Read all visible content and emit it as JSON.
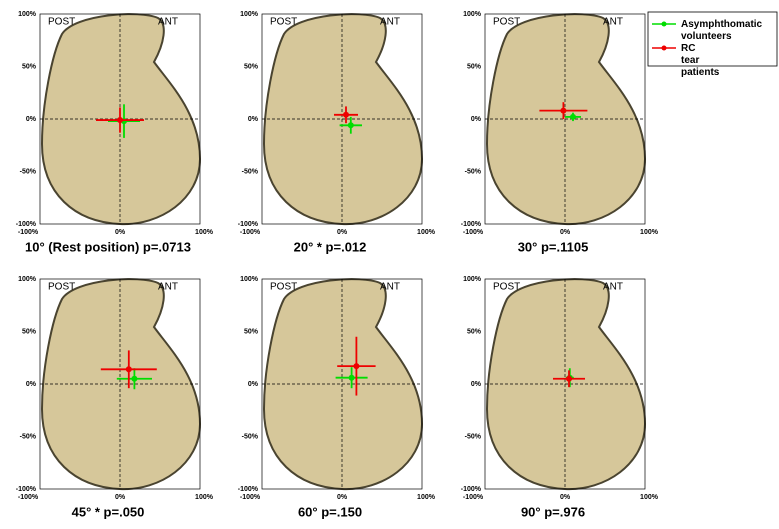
{
  "legend": [
    {
      "name": "Asymphthomatic volunteers",
      "color": "#00dd00"
    },
    {
      "name": "RC tear patients",
      "color": "#ee0000"
    }
  ],
  "chart_data": [
    {
      "type": "scatter",
      "title": "10° (Rest position) p=.0713",
      "annotations": [
        "POST",
        "ANT"
      ],
      "xlim": [
        -100,
        100
      ],
      "ylim": [
        -100,
        100
      ],
      "xticks": [
        {
          "value": -100,
          "label": "-100%"
        },
        {
          "value": 0,
          "label": "0%"
        },
        {
          "value": 100,
          "label": "100%"
        }
      ],
      "yticks": [
        {
          "value": 100,
          "label": "100%"
        },
        {
          "value": 50,
          "label": "50%"
        },
        {
          "value": 0,
          "label": "0%"
        },
        {
          "value": -50,
          "label": "-50%"
        },
        {
          "value": -100,
          "label": "-100%"
        }
      ],
      "series": [
        {
          "color": "#00dd00",
          "x": [
            5
          ],
          "y": [
            -2
          ],
          "xerr": [
            20
          ],
          "yerr": [
            16
          ]
        },
        {
          "color": "#ee0000",
          "x": [
            0
          ],
          "y": [
            -1
          ],
          "xerr": [
            30
          ],
          "yerr": [
            12
          ]
        }
      ]
    },
    {
      "type": "scatter",
      "title": "20° * p=.012",
      "annotations": [
        "POST",
        "ANT"
      ],
      "xlim": [
        -100,
        100
      ],
      "ylim": [
        -100,
        100
      ],
      "xticks": [
        {
          "value": -100,
          "label": "-100%"
        },
        {
          "value": 0,
          "label": "0%"
        },
        {
          "value": 100,
          "label": "100%"
        }
      ],
      "yticks": [
        {
          "value": 100,
          "label": "100%"
        },
        {
          "value": 50,
          "label": "50%"
        },
        {
          "value": 0,
          "label": "0%"
        },
        {
          "value": -50,
          "label": "-50%"
        },
        {
          "value": -100,
          "label": "-100%"
        }
      ],
      "series": [
        {
          "color": "#00dd00",
          "x": [
            11
          ],
          "y": [
            -6
          ],
          "xerr": [
            14
          ],
          "yerr": [
            8
          ]
        },
        {
          "color": "#ee0000",
          "x": [
            5
          ],
          "y": [
            4
          ],
          "xerr": [
            15
          ],
          "yerr": [
            8
          ]
        }
      ]
    },
    {
      "type": "scatter",
      "title": "30° p=.1105",
      "annotations": [
        "POST",
        "ANT"
      ],
      "xlim": [
        -100,
        100
      ],
      "ylim": [
        -100,
        100
      ],
      "xticks": [
        {
          "value": -100,
          "label": "-100%"
        },
        {
          "value": 0,
          "label": "0%"
        },
        {
          "value": 100,
          "label": "100%"
        }
      ],
      "yticks": [
        {
          "value": 100,
          "label": "100%"
        },
        {
          "value": 50,
          "label": "50%"
        },
        {
          "value": 0,
          "label": "0%"
        },
        {
          "value": -50,
          "label": "-50%"
        },
        {
          "value": -100,
          "label": "-100%"
        }
      ],
      "series": [
        {
          "color": "#00dd00",
          "x": [
            10
          ],
          "y": [
            2
          ],
          "xerr": [
            10
          ],
          "yerr": [
            4
          ]
        },
        {
          "color": "#ee0000",
          "x": [
            -2
          ],
          "y": [
            8
          ],
          "xerr": [
            30
          ],
          "yerr": [
            8
          ]
        }
      ]
    },
    {
      "type": "scatter",
      "title": "45° * p=.050",
      "annotations": [
        "POST",
        "ANT"
      ],
      "xlim": [
        -100,
        100
      ],
      "ylim": [
        -100,
        100
      ],
      "xticks": [
        {
          "value": -100,
          "label": "-100%"
        },
        {
          "value": 0,
          "label": "0%"
        },
        {
          "value": 100,
          "label": "100%"
        }
      ],
      "yticks": [
        {
          "value": 100,
          "label": "100%"
        },
        {
          "value": 50,
          "label": "50%"
        },
        {
          "value": 0,
          "label": "0%"
        },
        {
          "value": -50,
          "label": "-50%"
        },
        {
          "value": -100,
          "label": "-100%"
        }
      ],
      "series": [
        {
          "color": "#00dd00",
          "x": [
            18
          ],
          "y": [
            5
          ],
          "xerr": [
            22
          ],
          "yerr": [
            10
          ]
        },
        {
          "color": "#ee0000",
          "x": [
            11
          ],
          "y": [
            14
          ],
          "xerr": [
            35
          ],
          "yerr": [
            18
          ]
        }
      ]
    },
    {
      "type": "scatter",
      "title": "60° p=.150",
      "annotations": [
        "POST",
        "ANT"
      ],
      "xlim": [
        -100,
        100
      ],
      "ylim": [
        -100,
        100
      ],
      "xticks": [
        {
          "value": -100,
          "label": "-100%"
        },
        {
          "value": 0,
          "label": "0%"
        },
        {
          "value": 100,
          "label": "100%"
        }
      ],
      "yticks": [
        {
          "value": 100,
          "label": "100%"
        },
        {
          "value": 50,
          "label": "50%"
        },
        {
          "value": 0,
          "label": "0%"
        },
        {
          "value": -50,
          "label": "-50%"
        },
        {
          "value": -100,
          "label": "-100%"
        }
      ],
      "series": [
        {
          "color": "#00dd00",
          "x": [
            12
          ],
          "y": [
            6
          ],
          "xerr": [
            20
          ],
          "yerr": [
            10
          ]
        },
        {
          "color": "#ee0000",
          "x": [
            18
          ],
          "y": [
            17
          ],
          "xerr": [
            24
          ],
          "yerr": [
            28
          ]
        }
      ]
    },
    {
      "type": "scatter",
      "title": "90° p=.976",
      "annotations": [
        "POST",
        "ANT"
      ],
      "xlim": [
        -100,
        100
      ],
      "ylim": [
        -100,
        100
      ],
      "xticks": [
        {
          "value": -100,
          "label": "-100%"
        },
        {
          "value": 0,
          "label": "0%"
        },
        {
          "value": 100,
          "label": "100%"
        }
      ],
      "yticks": [
        {
          "value": 100,
          "label": "100%"
        },
        {
          "value": 50,
          "label": "50%"
        },
        {
          "value": 0,
          "label": "0%"
        },
        {
          "value": -50,
          "label": "-50%"
        },
        {
          "value": -100,
          "label": "-100%"
        }
      ],
      "series": [
        {
          "color": "#00dd00",
          "x": [
            6
          ],
          "y": [
            6
          ],
          "xerr": [
            5
          ],
          "yerr": [
            9
          ]
        },
        {
          "color": "#ee0000",
          "x": [
            5
          ],
          "y": [
            5
          ],
          "xerr": [
            20
          ],
          "yerr": [
            8
          ]
        }
      ]
    }
  ]
}
